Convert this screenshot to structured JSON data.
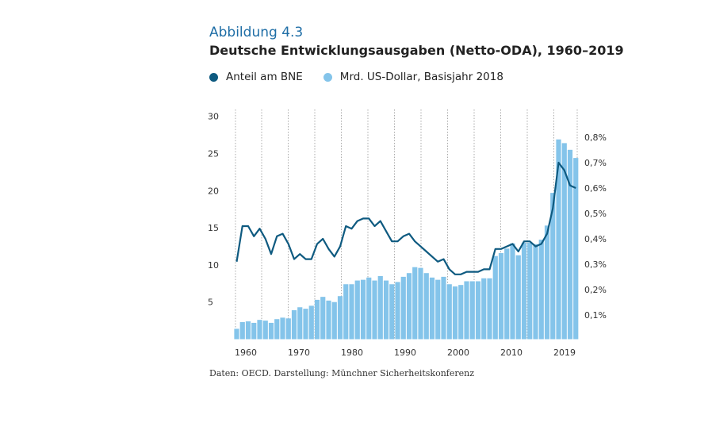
{
  "figure_label": "Abbildung 4.3",
  "title": "Deutsche Entwicklungsausgaben (Netto-ODA), 1960–2019",
  "source": "Daten: OECD. Darstellung: Münchner Sicherheitskonferenz",
  "legend": [
    {
      "label": "Anteil am BNE",
      "color": "#0e5a80"
    },
    {
      "label": "Mrd. US-Dollar, Basisjahr 2018",
      "color": "#84c4ea"
    }
  ],
  "chart_data": {
    "type": "bar+line",
    "title": "Deutsche Entwicklungsausgaben (Netto-ODA), 1960–2019",
    "x": [
      1960,
      1961,
      1962,
      1963,
      1964,
      1965,
      1966,
      1967,
      1968,
      1969,
      1970,
      1971,
      1972,
      1973,
      1974,
      1975,
      1976,
      1977,
      1978,
      1979,
      1980,
      1981,
      1982,
      1983,
      1984,
      1985,
      1986,
      1987,
      1988,
      1989,
      1990,
      1991,
      1992,
      1993,
      1994,
      1995,
      1996,
      1997,
      1998,
      1999,
      2000,
      2001,
      2002,
      2003,
      2004,
      2005,
      2006,
      2007,
      2008,
      2009,
      2010,
      2011,
      2012,
      2013,
      2014,
      2015,
      2016,
      2017,
      2018,
      2019
    ],
    "x_tick_labels": [
      "1960",
      "1970",
      "1980",
      "1990",
      "2000",
      "2010",
      "2019"
    ],
    "series": [
      {
        "name": "Mrd. US-Dollar, Basisjahr 2018",
        "type": "bar",
        "axis": "left",
        "color": "#84c4ea",
        "values": [
          1.4,
          2.3,
          2.4,
          2.2,
          2.6,
          2.5,
          2.2,
          2.7,
          2.9,
          2.8,
          3.9,
          4.3,
          4.1,
          4.5,
          5.3,
          5.7,
          5.2,
          5.0,
          5.8,
          7.4,
          7.4,
          7.9,
          8.0,
          8.3,
          7.9,
          8.5,
          7.9,
          7.4,
          7.7,
          8.4,
          8.9,
          9.7,
          9.6,
          8.9,
          8.3,
          8.0,
          8.4,
          7.4,
          7.1,
          7.3,
          7.8,
          7.8,
          7.8,
          8.2,
          8.2,
          11.2,
          11.6,
          12.2,
          12.9,
          11.3,
          13.0,
          13.0,
          12.8,
          13.4,
          15.3,
          19.7,
          26.9,
          26.4,
          25.5,
          24.4
        ]
      },
      {
        "name": "Anteil am BNE",
        "type": "line",
        "axis": "right",
        "unit": "%",
        "color": "#0e5a80",
        "values": [
          0.31,
          0.45,
          0.45,
          0.41,
          0.44,
          0.4,
          0.34,
          0.41,
          0.42,
          0.38,
          0.32,
          0.34,
          0.32,
          0.32,
          0.38,
          0.4,
          0.36,
          0.33,
          0.37,
          0.45,
          0.44,
          0.47,
          0.48,
          0.48,
          0.45,
          0.47,
          0.43,
          0.39,
          0.39,
          0.41,
          0.42,
          0.39,
          0.37,
          0.35,
          0.33,
          0.31,
          0.32,
          0.28,
          0.26,
          0.26,
          0.27,
          0.27,
          0.27,
          0.28,
          0.28,
          0.36,
          0.36,
          0.37,
          0.38,
          0.35,
          0.39,
          0.39,
          0.37,
          0.38,
          0.42,
          0.52,
          0.7,
          0.67,
          0.61,
          0.6
        ]
      }
    ],
    "y_left": {
      "ylim": [
        0,
        30
      ],
      "ticks": [
        5,
        10,
        15,
        20,
        25,
        30
      ],
      "tick_labels": [
        "5",
        "10",
        "15",
        "20",
        "25",
        "30"
      ]
    },
    "y_right": {
      "ylim": [
        0,
        0.9375
      ],
      "ticks": [
        0.1,
        0.2,
        0.3,
        0.4,
        0.5,
        0.6,
        0.7,
        0.8
      ],
      "tick_labels": [
        "0,1%",
        "0,2%",
        "0,3%",
        "0,4%",
        "0,5%",
        "0,6%",
        "0,7%",
        "0,8%"
      ]
    },
    "grid": "vertical dotted",
    "legend_position": "top-left"
  }
}
